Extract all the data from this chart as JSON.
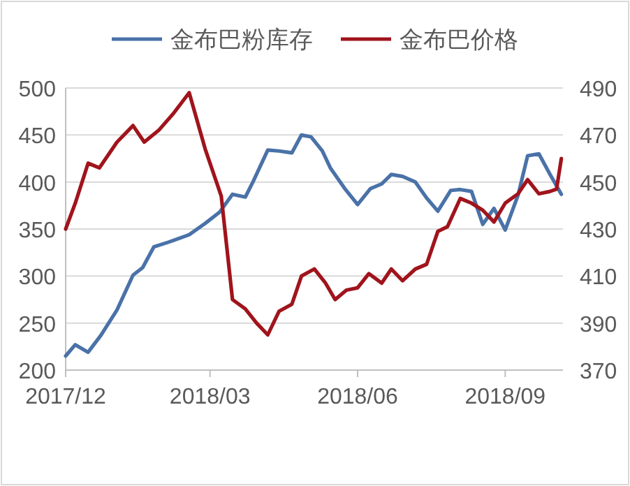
{
  "chart_data": {
    "type": "line",
    "legend": "top",
    "grid": "y",
    "xlim": [
      "2017-12-01",
      "2018-10-07"
    ],
    "xticks": [
      {
        "value": "2017-12-01",
        "label": "2017/12"
      },
      {
        "value": "2018-03-01",
        "label": "2018/03"
      },
      {
        "value": "2018-06-01",
        "label": "2018/06"
      },
      {
        "value": "2018-09-01",
        "label": "2018/09"
      }
    ],
    "ylim": [
      200,
      500
    ],
    "yticks": [
      200,
      250,
      300,
      350,
      400,
      450,
      500
    ],
    "y2lim": [
      370,
      490
    ],
    "y2ticks": [
      370,
      390,
      410,
      430,
      450,
      470,
      490
    ],
    "series": [
      {
        "name": "金布巴粉库存",
        "color": "#4a72a8",
        "x": [
          "2017-12-01",
          "2017-12-07",
          "2017-12-15",
          "2017-12-23",
          "2018-01-02",
          "2018-01-12",
          "2018-01-18",
          "2018-01-25",
          "2018-02-03",
          "2018-02-16",
          "2018-02-26",
          "2018-03-07",
          "2018-03-15",
          "2018-03-23",
          "2018-03-28",
          "2018-04-06",
          "2018-04-13",
          "2018-04-21",
          "2018-04-27",
          "2018-05-03",
          "2018-05-10",
          "2018-05-15",
          "2018-05-24",
          "2018-06-01",
          "2018-06-09",
          "2018-06-16",
          "2018-06-22",
          "2018-06-29",
          "2018-07-07",
          "2018-07-14",
          "2018-07-21",
          "2018-07-29",
          "2018-08-04",
          "2018-08-11",
          "2018-08-18",
          "2018-08-25",
          "2018-09-01",
          "2018-09-09",
          "2018-09-15",
          "2018-09-22",
          "2018-09-29",
          "2018-10-06"
        ],
        "values": [
          215,
          227,
          219,
          237,
          264,
          301,
          309,
          331,
          336,
          344,
          356,
          368,
          387,
          384,
          401,
          434,
          433,
          431,
          450,
          448,
          433,
          415,
          393,
          376,
          393,
          398,
          408,
          406,
          400,
          383,
          369,
          391,
          392,
          390,
          355,
          372,
          349,
          386,
          428,
          430,
          408,
          387
        ]
      },
      {
        "name": "金布巴价格",
        "color": "#a0141c",
        "axis": "y2",
        "x": [
          "2017-12-01",
          "2017-12-07",
          "2017-12-15",
          "2017-12-22",
          "2018-01-02",
          "2018-01-12",
          "2018-01-19",
          "2018-01-28",
          "2018-02-06",
          "2018-02-16",
          "2018-02-26",
          "2018-03-08",
          "2018-03-15",
          "2018-03-23",
          "2018-03-30",
          "2018-04-06",
          "2018-04-13",
          "2018-04-21",
          "2018-04-27",
          "2018-05-05",
          "2018-05-12",
          "2018-05-18",
          "2018-05-25",
          "2018-06-01",
          "2018-06-08",
          "2018-06-16",
          "2018-06-22",
          "2018-06-29",
          "2018-07-07",
          "2018-07-14",
          "2018-07-21",
          "2018-07-27",
          "2018-08-04",
          "2018-08-11",
          "2018-08-18",
          "2018-08-25",
          "2018-09-01",
          "2018-09-09",
          "2018-09-15",
          "2018-09-22",
          "2018-09-29",
          "2018-10-03",
          "2018-10-06"
        ],
        "values": [
          430,
          441,
          458,
          456,
          467,
          474,
          467,
          472,
          479,
          488,
          464,
          444,
          400,
          396,
          390,
          385,
          395,
          398,
          410,
          413,
          407,
          400,
          404,
          405,
          411,
          407,
          413,
          408,
          413,
          415,
          429,
          431,
          443,
          441,
          438,
          433,
          441,
          445,
          451,
          445,
          446,
          447,
          460
        ]
      }
    ]
  }
}
